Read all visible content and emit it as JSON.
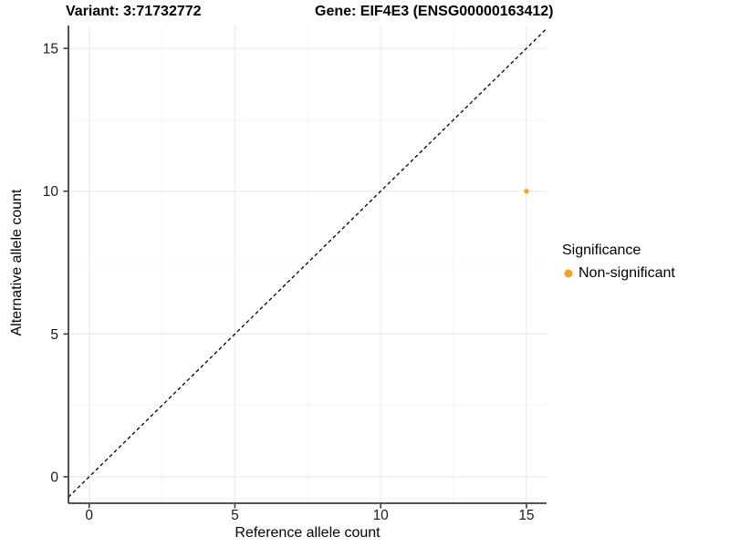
{
  "chart_data": {
    "type": "scatter",
    "titles": [
      "Variant: 3:71732772",
      "Gene: EIF4E3 (ENSG00000163412)"
    ],
    "xlabel": "Reference allele count",
    "ylabel": "Alternative allele count",
    "x_ticks": [
      0,
      5,
      10,
      15
    ],
    "y_ticks": [
      0,
      5,
      10,
      15
    ],
    "x_minor_ticks": [
      2.5,
      7.5,
      12.5
    ],
    "y_minor_ticks": [
      2.5,
      7.5,
      12.5
    ],
    "xlim": [
      -0.72,
      15.69
    ],
    "ylim": [
      -0.93,
      15.8
    ],
    "grid": "major-and-minor",
    "background": "#FFFFFF",
    "series": [
      {
        "name": "Non-significant",
        "color": "#F9A02C",
        "points": [
          {
            "x": 15,
            "y": 10
          }
        ]
      }
    ],
    "reference_line": {
      "equation": "y = x",
      "style": "dashed",
      "color": "#000000"
    },
    "legend": {
      "title": "Significance",
      "position": "right",
      "entries": [
        {
          "label": "Non-significant",
          "color": "#F9A02C"
        }
      ]
    },
    "colors": {
      "grid_major": "#EBEBEB",
      "grid_minor": "#F5F5F5",
      "axis_line": "#3C3C3C",
      "tick_text": "#1A1A1A"
    }
  }
}
